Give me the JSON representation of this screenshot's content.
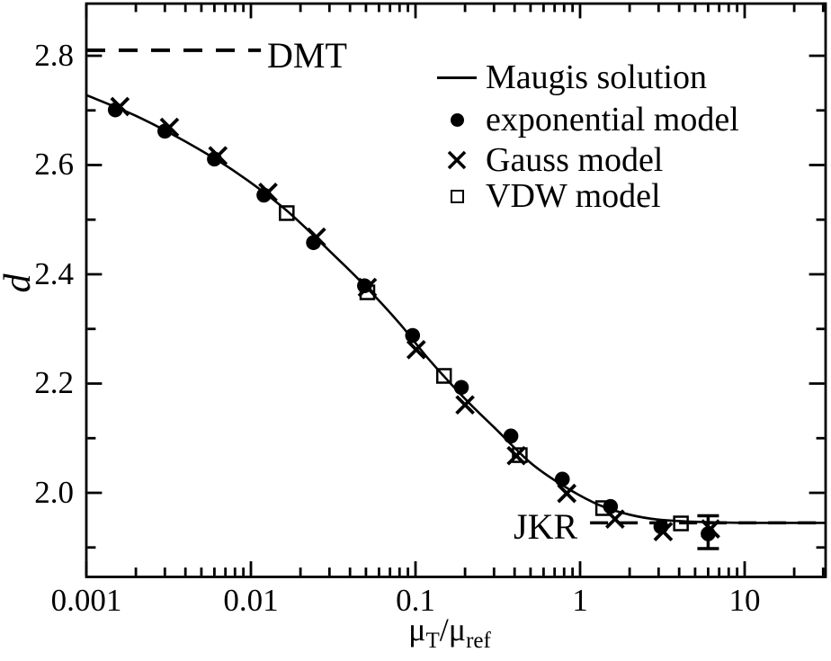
{
  "figure": {
    "background": "#ffffff",
    "ink": "#000000"
  },
  "axes": {
    "x": {
      "scale": "log",
      "min": 0.001,
      "max": 31,
      "tick_values": [
        0.001,
        0.01,
        0.1,
        1,
        10
      ],
      "tick_labels": [
        "0.001",
        "0.01",
        "0.1",
        "1",
        "10"
      ],
      "label_parts": {
        "mu1": "μ",
        "sub_t": "T",
        "slash": "/",
        "mu2": "μ",
        "sub_ref": "ref"
      }
    },
    "y": {
      "scale": "linear",
      "min": 1.846,
      "max": 2.895,
      "label": "d",
      "tick_values": [
        2.8,
        2.6,
        2.4,
        2.2,
        2.0
      ],
      "tick_labels": [
        "2.8",
        "2.6",
        "2.4",
        "2.2",
        "2.0"
      ],
      "minor_tick_values": [
        2.7,
        2.5,
        2.3,
        2.1,
        1.9
      ]
    }
  },
  "legend": {
    "items": [
      {
        "marker": "line",
        "label": "Maugis solution"
      },
      {
        "marker": "filled-circle",
        "label": "exponential model"
      },
      {
        "marker": "x-cross",
        "label": "Gauss model"
      },
      {
        "marker": "open-square",
        "label": "VDW model"
      }
    ]
  },
  "annotations": {
    "dmt": {
      "label": "DMT",
      "d_value": 2.81,
      "x_from": 0.001,
      "x_to": 0.0115
    },
    "jkr": {
      "label": "JKR",
      "d_value": 1.945,
      "x_from": 1.15,
      "x_to": 31
    }
  },
  "chart_data": {
    "type": "line+scatter",
    "title": "",
    "xlabel": "μT/μref",
    "ylabel": "d",
    "x_scale": "log",
    "xlim": [
      0.001,
      31
    ],
    "ylim": [
      1.846,
      2.895
    ],
    "grid": false,
    "legend_position": "upper right",
    "series": [
      {
        "name": "Maugis solution",
        "type": "line",
        "marker": "none",
        "points": [
          [
            0.001,
            2.728
          ],
          [
            0.002,
            2.69
          ],
          [
            0.004,
            2.643
          ],
          [
            0.008,
            2.588
          ],
          [
            0.016,
            2.52
          ],
          [
            0.03,
            2.443
          ],
          [
            0.05,
            2.377
          ],
          [
            0.08,
            2.31
          ],
          [
            0.12,
            2.245
          ],
          [
            0.2,
            2.172
          ],
          [
            0.3,
            2.12
          ],
          [
            0.5,
            2.055
          ],
          [
            0.8,
            2.012
          ],
          [
            1.3,
            1.978
          ],
          [
            2.0,
            1.96
          ],
          [
            3.0,
            1.951
          ],
          [
            5.0,
            1.947
          ],
          [
            10,
            1.945
          ],
          [
            31,
            1.945
          ]
        ]
      },
      {
        "name": "exponential model",
        "type": "scatter",
        "marker": "filled-circle",
        "points": [
          [
            0.0015,
            2.701
          ],
          [
            0.003,
            2.662
          ],
          [
            0.006,
            2.611
          ],
          [
            0.012,
            2.545
          ],
          [
            0.024,
            2.458
          ],
          [
            0.049,
            2.379
          ],
          [
            0.096,
            2.288
          ],
          [
            0.19,
            2.193
          ],
          [
            0.38,
            2.104
          ],
          [
            0.78,
            2.025
          ],
          [
            1.53,
            1.975
          ],
          [
            3.1,
            1.938
          ],
          [
            6.0,
            1.925
          ]
        ]
      },
      {
        "name": "Gauss model",
        "type": "scatter",
        "marker": "x-cross",
        "points": [
          [
            0.0016,
            2.707
          ],
          [
            0.0032,
            2.669
          ],
          [
            0.0063,
            2.617
          ],
          [
            0.0127,
            2.55
          ],
          [
            0.025,
            2.468
          ],
          [
            0.051,
            2.376
          ],
          [
            0.101,
            2.262
          ],
          [
            0.2,
            2.161
          ],
          [
            0.41,
            2.068
          ],
          [
            0.83,
            1.999
          ],
          [
            1.63,
            1.952
          ],
          [
            3.2,
            1.929
          ],
          [
            6.2,
            1.934
          ]
        ]
      },
      {
        "name": "VDW model",
        "type": "scatter",
        "marker": "open-square",
        "points": [
          [
            0.0165,
            2.512
          ],
          [
            0.051,
            2.367
          ],
          [
            0.149,
            2.214
          ],
          [
            0.43,
            2.069
          ],
          [
            1.38,
            1.972
          ],
          [
            4.1,
            1.944
          ]
        ]
      }
    ],
    "error_bars": [
      {
        "series": "exponential model",
        "x": 6.0,
        "y": 1.925,
        "y_low": 1.898,
        "y_high": 1.958
      }
    ],
    "reference_lines": [
      {
        "label": "DMT",
        "y": 2.81,
        "style": "dashed"
      },
      {
        "label": "JKR",
        "y": 1.945,
        "style": "dashed"
      }
    ]
  }
}
